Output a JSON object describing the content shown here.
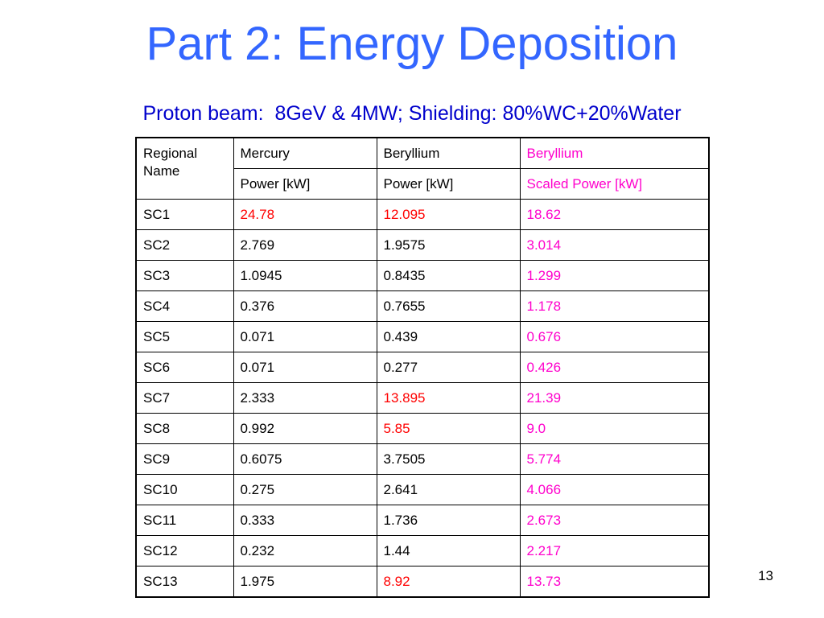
{
  "slide": {
    "title": "Part 2: Energy Deposition",
    "subtitle": "Proton beam:  8GeV & 4MW; Shielding: 80%WC+20%Water",
    "page_number": "13"
  },
  "colors": {
    "title": "#3366ff",
    "subtitle": "#0000cc",
    "highlight_red": "#ff0000",
    "scaled_pink": "#ff00cc"
  },
  "table": {
    "header": {
      "col1": "Regional Name",
      "mercury": "Mercury",
      "beryllium": "Beryllium",
      "beryllium_scaled": "Beryllium",
      "mercury_unit": "Power [kW]",
      "beryllium_unit": "Power [kW]",
      "scaled_unit": "Scaled Power [kW]"
    },
    "rows": [
      {
        "name": "SC1",
        "mercury": "24.78",
        "beryllium": "12.095",
        "scaled": "18.62",
        "mercury_red": true,
        "beryllium_red": true
      },
      {
        "name": "SC2",
        "mercury": "2.769",
        "beryllium": "1.9575",
        "scaled": "3.014",
        "mercury_red": false,
        "beryllium_red": false
      },
      {
        "name": "SC3",
        "mercury": "1.0945",
        "beryllium": "0.8435",
        "scaled": "1.299",
        "mercury_red": false,
        "beryllium_red": false
      },
      {
        "name": "SC4",
        "mercury": "0.376",
        "beryllium": "0.7655",
        "scaled": "1.178",
        "mercury_red": false,
        "beryllium_red": false
      },
      {
        "name": "SC5",
        "mercury": "0.071",
        "beryllium": "0.439",
        "scaled": "0.676",
        "mercury_red": false,
        "beryllium_red": false
      },
      {
        "name": "SC6",
        "mercury": "0.071",
        "beryllium": "0.277",
        "scaled": "0.426",
        "mercury_red": false,
        "beryllium_red": false
      },
      {
        "name": "SC7",
        "mercury": "2.333",
        "beryllium": "13.895",
        "scaled": "21.39",
        "mercury_red": false,
        "beryllium_red": true
      },
      {
        "name": "SC8",
        "mercury": "0.992",
        "beryllium": "5.85",
        "scaled": "9.0",
        "mercury_red": false,
        "beryllium_red": true
      },
      {
        "name": "SC9",
        "mercury": "0.6075",
        "beryllium": "3.7505",
        "scaled": "5.774",
        "mercury_red": false,
        "beryllium_red": false
      },
      {
        "name": "SC10",
        "mercury": "0.275",
        "beryllium": "2.641",
        "scaled": "4.066",
        "mercury_red": false,
        "beryllium_red": false
      },
      {
        "name": "SC11",
        "mercury": "0.333",
        "beryllium": "1.736",
        "scaled": "2.673",
        "mercury_red": false,
        "beryllium_red": false
      },
      {
        "name": "SC12",
        "mercury": "0.232",
        "beryllium": "1.44",
        "scaled": "2.217",
        "mercury_red": false,
        "beryllium_red": false
      },
      {
        "name": "SC13",
        "mercury": "1.975",
        "beryllium": "8.92",
        "scaled": "13.73",
        "mercury_red": false,
        "beryllium_red": true
      }
    ]
  }
}
